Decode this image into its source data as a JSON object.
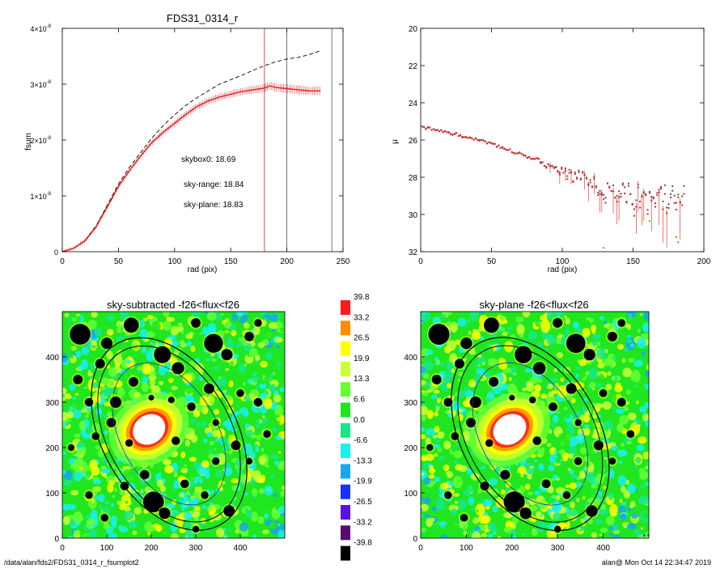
{
  "chart_data": [
    {
      "id": "fsum",
      "type": "line",
      "title": "FDS31_0314_r",
      "xlabel": "rad (pix)",
      "ylabel": "fsum",
      "xlim": [
        0,
        250
      ],
      "ylim": [
        0,
        4e-08
      ],
      "xticks": [
        0,
        50,
        100,
        150,
        200,
        250
      ],
      "yticks": [
        {
          "v": 0,
          "label": "0",
          "exp": ""
        },
        {
          "v": 1e-08,
          "label": "1×10",
          "exp": "-8"
        },
        {
          "v": 2e-08,
          "label": "2×10",
          "exp": "-8"
        },
        {
          "v": 3e-08,
          "label": "3×10",
          "exp": "-8"
        },
        {
          "v": 4e-08,
          "label": "4×10",
          "exp": "-8"
        }
      ],
      "series": [
        {
          "style": "dashed",
          "color": "#000000",
          "x": [
            0,
            10,
            20,
            30,
            40,
            50,
            60,
            70,
            80,
            90,
            100,
            110,
            120,
            130,
            140,
            150,
            160,
            170,
            180,
            190,
            200,
            210,
            220,
            230
          ],
          "y": [
            0,
            0.06,
            0.2,
            0.46,
            0.83,
            1.21,
            1.52,
            1.78,
            2.04,
            2.26,
            2.45,
            2.62,
            2.76,
            2.88,
            3.0,
            3.08,
            3.16,
            3.25,
            3.33,
            3.4,
            3.45,
            3.48,
            3.53,
            3.6
          ]
        },
        {
          "style": "solid-errorbars",
          "color": "#e02020",
          "x": [
            0,
            10,
            20,
            30,
            40,
            50,
            60,
            70,
            80,
            90,
            100,
            110,
            120,
            130,
            140,
            150,
            160,
            170,
            180,
            185,
            190,
            200,
            210,
            220,
            230
          ],
          "y": [
            0,
            0.06,
            0.19,
            0.44,
            0.8,
            1.17,
            1.46,
            1.72,
            1.96,
            2.14,
            2.3,
            2.46,
            2.6,
            2.7,
            2.77,
            2.82,
            2.87,
            2.9,
            2.93,
            2.97,
            2.94,
            2.92,
            2.9,
            2.88,
            2.88
          ]
        }
      ],
      "y_scale": 1e-08,
      "vlines": [
        {
          "x": 180,
          "color": "#e02020"
        },
        {
          "x": 200,
          "color": "#555555"
        },
        {
          "x": 240,
          "color": "#555555"
        }
      ],
      "annotations": [
        {
          "text": "skybox0: 18.69",
          "color": "#000000"
        },
        {
          "text": "sky-range: 18.84",
          "color": "#e02020"
        },
        {
          "text": "sky-plane: 18.83",
          "color": "#22cc22"
        }
      ]
    },
    {
      "id": "mu",
      "type": "scatter",
      "xlabel": "rad (pix)",
      "ylabel": "μ",
      "xlim": [
        0,
        200
      ],
      "ylim": [
        32,
        20
      ],
      "xticks": [
        0,
        50,
        100,
        150,
        200
      ],
      "yticks": [
        20,
        22,
        24,
        26,
        28,
        30,
        32
      ],
      "series": [
        {
          "color": "#555555",
          "trend": [
            [
              0,
              25.3
            ],
            [
              20,
              25.6
            ],
            [
              50,
              26.2
            ],
            [
              80,
              27.0
            ],
            [
              100,
              27.7
            ],
            [
              120,
              28.3
            ],
            [
              140,
              28.8
            ],
            [
              160,
              29.2
            ],
            [
              185,
              28.7
            ]
          ]
        },
        {
          "color": "#e02020"
        },
        {
          "color": "#22cc22"
        }
      ]
    },
    {
      "id": "sky-subtracted",
      "type": "heatmap",
      "title": "sky-subtracted -f26<flux<f26",
      "xlim": [
        0,
        500
      ],
      "ylim": [
        0,
        500
      ],
      "xticks": [
        0,
        100,
        200,
        300,
        400
      ],
      "yticks": [
        0,
        100,
        200,
        300,
        400
      ]
    },
    {
      "id": "sky-plane",
      "type": "heatmap",
      "title": "sky-plane -f26<flux<f26",
      "xlim": [
        0,
        500
      ],
      "ylim": [
        0,
        500
      ],
      "xticks": [
        0,
        100,
        200,
        300,
        400
      ],
      "yticks": [
        0,
        100,
        200,
        300,
        400
      ]
    },
    {
      "id": "colorbar",
      "type": "heatmap",
      "levels": [
        {
          "label": "39.8",
          "color": "#ff1a1a"
        },
        {
          "label": "33.2",
          "color": "#ff8c00"
        },
        {
          "label": "26.5",
          "color": "#ffff00"
        },
        {
          "label": "19.9",
          "color": "#ccff33"
        },
        {
          "label": "13.3",
          "color": "#66ff33"
        },
        {
          "label": "6.6",
          "color": "#1fe61f"
        },
        {
          "label": "0.0",
          "color": "#19e68a"
        },
        {
          "label": "-6.6",
          "color": "#19f0f0"
        },
        {
          "label": "-13.3",
          "color": "#19a6f0"
        },
        {
          "label": "-19.9",
          "color": "#1433ff"
        },
        {
          "label": "-26.5",
          "color": "#5a10e0"
        },
        {
          "label": "-33.2",
          "color": "#5a0a6e"
        },
        {
          "label": "-39.8",
          "color": "#000000"
        }
      ]
    }
  ],
  "footer": {
    "path": "/data/alan/fds2/FDS31_0314_r_fsumplot2",
    "stamp": "alan@  Mon Oct 14 22:34:47 2019"
  }
}
